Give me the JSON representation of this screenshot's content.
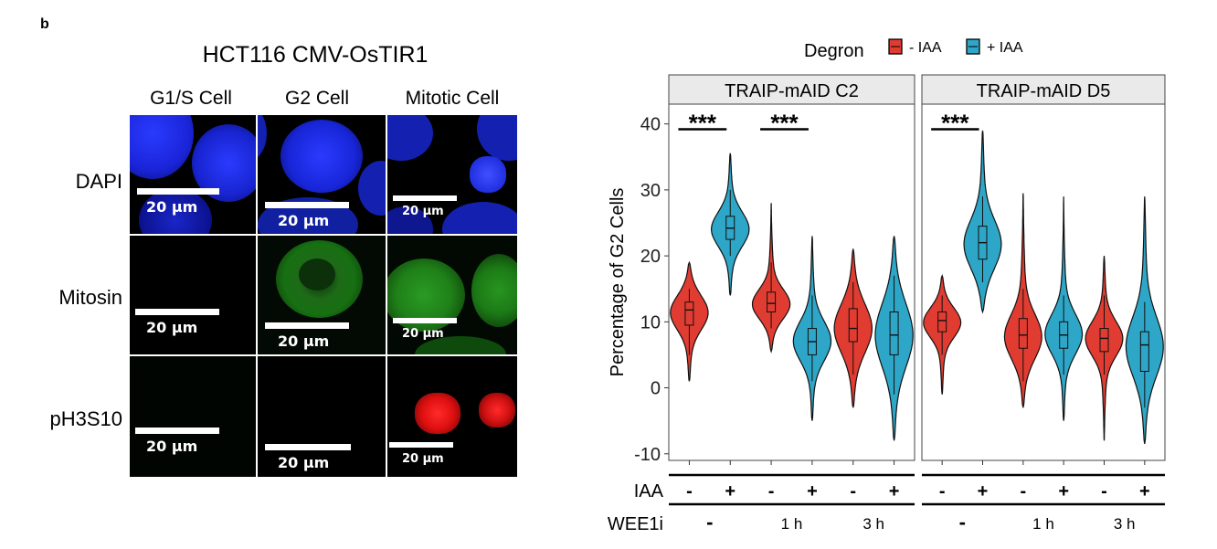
{
  "panel_letter": "b",
  "micrograph": {
    "title": "HCT116 CMV-OsTIR1",
    "columns": [
      "G1/S Cell",
      "G2 Cell",
      "Mitotic Cell"
    ],
    "rows": [
      "DAPI",
      "Mitosin",
      "pH3S10"
    ],
    "scale_label": "20 μm",
    "channel_colors": {
      "DAPI": "#1a2cff",
      "Mitosin": "#22b020",
      "pH3S10": "#ff1a1a"
    }
  },
  "chart_data": {
    "type": "violin",
    "legend": {
      "title": "Degron",
      "entries": [
        {
          "name": "- IAA",
          "color": "#e03c31"
        },
        {
          "name": "+ IAA",
          "color": "#2ea6c8"
        }
      ],
      "position": "top"
    },
    "ylabel": "Percentage of G2 Cells",
    "ylim": [
      -11,
      43
    ],
    "yticks": [
      -10,
      0,
      10,
      20,
      30,
      40
    ],
    "grid": false,
    "facets": [
      {
        "title": "TRAIP-mAID C2",
        "significance": [
          {
            "groups": [
              0,
              1
            ],
            "label": "***"
          },
          {
            "groups": [
              2,
              3
            ],
            "label": "***"
          }
        ],
        "groups": [
          {
            "iaa": "-",
            "color": "#e03c31",
            "min": 1,
            "max": 19,
            "q1": 9.5,
            "median": 11.8,
            "q3": 13,
            "lower": 5,
            "upper": 15,
            "mode": 11.5
          },
          {
            "iaa": "+",
            "color": "#2ea6c8",
            "min": 14,
            "max": 35.5,
            "q1": 22.5,
            "median": 24.2,
            "q3": 26,
            "lower": 20,
            "upper": 30,
            "mode": 24
          },
          {
            "iaa": "-",
            "color": "#e03c31",
            "min": 5.5,
            "max": 28,
            "q1": 11.5,
            "median": 12.8,
            "q3": 14.5,
            "lower": 9,
            "upper": 19,
            "mode": 12.5
          },
          {
            "iaa": "+",
            "color": "#2ea6c8",
            "min": -5,
            "max": 23,
            "q1": 5,
            "median": 7,
            "q3": 9,
            "lower": 1,
            "upper": 14,
            "mode": 7
          },
          {
            "iaa": "-",
            "color": "#e03c31",
            "min": -3,
            "max": 21,
            "q1": 7,
            "median": 9,
            "q3": 12,
            "lower": 2,
            "upper": 16,
            "mode": 9
          },
          {
            "iaa": "+",
            "color": "#2ea6c8",
            "min": -8,
            "max": 23,
            "q1": 5,
            "median": 8,
            "q3": 11.5,
            "lower": -1,
            "upper": 17,
            "mode": 8
          }
        ]
      },
      {
        "title": "TRAIP-mAID D5",
        "significance": [
          {
            "groups": [
              0,
              1
            ],
            "label": "***"
          }
        ],
        "groups": [
          {
            "iaa": "-",
            "color": "#e03c31",
            "min": -1,
            "max": 17,
            "q1": 8.5,
            "median": 10.2,
            "q3": 11.5,
            "lower": 5,
            "upper": 14,
            "mode": 10
          },
          {
            "iaa": "+",
            "color": "#2ea6c8",
            "min": 11.5,
            "max": 39,
            "q1": 19.5,
            "median": 22,
            "q3": 24.5,
            "lower": 16,
            "upper": 29,
            "mode": 21.5
          },
          {
            "iaa": "-",
            "color": "#e03c31",
            "min": -3,
            "max": 29.5,
            "q1": 6,
            "median": 8,
            "q3": 10.5,
            "lower": 1,
            "upper": 15,
            "mode": 7.5
          },
          {
            "iaa": "+",
            "color": "#2ea6c8",
            "min": -5,
            "max": 29,
            "q1": 6,
            "median": 8,
            "q3": 10,
            "lower": 2,
            "upper": 14,
            "mode": 8
          },
          {
            "iaa": "-",
            "color": "#e03c31",
            "min": -8,
            "max": 20,
            "q1": 5.5,
            "median": 7.5,
            "q3": 9,
            "lower": 2,
            "upper": 14,
            "mode": 7.5
          },
          {
            "iaa": "+",
            "color": "#2ea6c8",
            "min": -8.5,
            "max": 29,
            "q1": 2.5,
            "median": 6.5,
            "q3": 8.5,
            "lower": -3,
            "upper": 13,
            "mode": 6
          }
        ]
      }
    ],
    "x_annotation": {
      "iaa_label": "IAA",
      "wee1i_label": "WEE1i",
      "wee1i_values": [
        "-",
        "1 h",
        "3 h"
      ]
    }
  }
}
